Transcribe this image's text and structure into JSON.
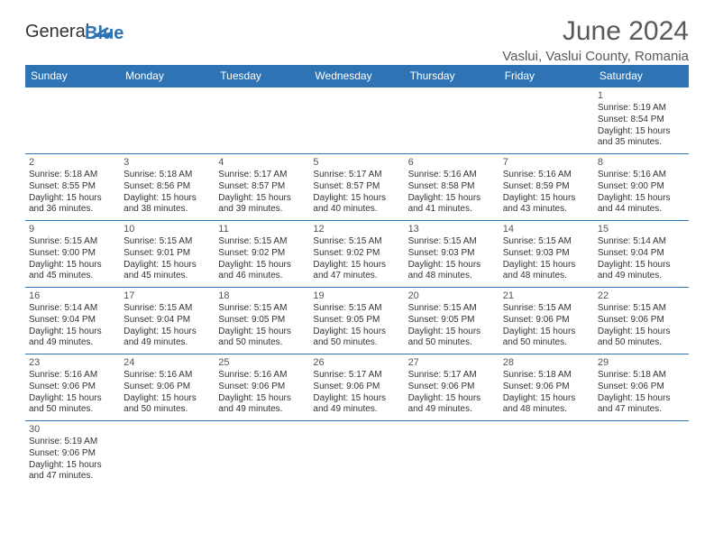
{
  "brand": {
    "part1": "General",
    "part2": "Blue",
    "accent": "#2e74b5",
    "text": "#333333"
  },
  "header": {
    "title": "June 2024",
    "location": "Vaslui, Vaslui County, Romania"
  },
  "calendar": {
    "weekday_labels": [
      "Sunday",
      "Monday",
      "Tuesday",
      "Wednesday",
      "Thursday",
      "Friday",
      "Saturday"
    ],
    "header_bg": "#2e74b5",
    "header_fg": "#ffffff",
    "border_color": "#2e74b5",
    "weeks": [
      [
        null,
        null,
        null,
        null,
        null,
        null,
        {
          "d": "1",
          "sr": "5:19 AM",
          "ss": "8:54 PM",
          "dl": "15 hours and 35 minutes."
        }
      ],
      [
        {
          "d": "2",
          "sr": "5:18 AM",
          "ss": "8:55 PM",
          "dl": "15 hours and 36 minutes."
        },
        {
          "d": "3",
          "sr": "5:18 AM",
          "ss": "8:56 PM",
          "dl": "15 hours and 38 minutes."
        },
        {
          "d": "4",
          "sr": "5:17 AM",
          "ss": "8:57 PM",
          "dl": "15 hours and 39 minutes."
        },
        {
          "d": "5",
          "sr": "5:17 AM",
          "ss": "8:57 PM",
          "dl": "15 hours and 40 minutes."
        },
        {
          "d": "6",
          "sr": "5:16 AM",
          "ss": "8:58 PM",
          "dl": "15 hours and 41 minutes."
        },
        {
          "d": "7",
          "sr": "5:16 AM",
          "ss": "8:59 PM",
          "dl": "15 hours and 43 minutes."
        },
        {
          "d": "8",
          "sr": "5:16 AM",
          "ss": "9:00 PM",
          "dl": "15 hours and 44 minutes."
        }
      ],
      [
        {
          "d": "9",
          "sr": "5:15 AM",
          "ss": "9:00 PM",
          "dl": "15 hours and 45 minutes."
        },
        {
          "d": "10",
          "sr": "5:15 AM",
          "ss": "9:01 PM",
          "dl": "15 hours and 45 minutes."
        },
        {
          "d": "11",
          "sr": "5:15 AM",
          "ss": "9:02 PM",
          "dl": "15 hours and 46 minutes."
        },
        {
          "d": "12",
          "sr": "5:15 AM",
          "ss": "9:02 PM",
          "dl": "15 hours and 47 minutes."
        },
        {
          "d": "13",
          "sr": "5:15 AM",
          "ss": "9:03 PM",
          "dl": "15 hours and 48 minutes."
        },
        {
          "d": "14",
          "sr": "5:15 AM",
          "ss": "9:03 PM",
          "dl": "15 hours and 48 minutes."
        },
        {
          "d": "15",
          "sr": "5:14 AM",
          "ss": "9:04 PM",
          "dl": "15 hours and 49 minutes."
        }
      ],
      [
        {
          "d": "16",
          "sr": "5:14 AM",
          "ss": "9:04 PM",
          "dl": "15 hours and 49 minutes."
        },
        {
          "d": "17",
          "sr": "5:15 AM",
          "ss": "9:04 PM",
          "dl": "15 hours and 49 minutes."
        },
        {
          "d": "18",
          "sr": "5:15 AM",
          "ss": "9:05 PM",
          "dl": "15 hours and 50 minutes."
        },
        {
          "d": "19",
          "sr": "5:15 AM",
          "ss": "9:05 PM",
          "dl": "15 hours and 50 minutes."
        },
        {
          "d": "20",
          "sr": "5:15 AM",
          "ss": "9:05 PM",
          "dl": "15 hours and 50 minutes."
        },
        {
          "d": "21",
          "sr": "5:15 AM",
          "ss": "9:06 PM",
          "dl": "15 hours and 50 minutes."
        },
        {
          "d": "22",
          "sr": "5:15 AM",
          "ss": "9:06 PM",
          "dl": "15 hours and 50 minutes."
        }
      ],
      [
        {
          "d": "23",
          "sr": "5:16 AM",
          "ss": "9:06 PM",
          "dl": "15 hours and 50 minutes."
        },
        {
          "d": "24",
          "sr": "5:16 AM",
          "ss": "9:06 PM",
          "dl": "15 hours and 50 minutes."
        },
        {
          "d": "25",
          "sr": "5:16 AM",
          "ss": "9:06 PM",
          "dl": "15 hours and 49 minutes."
        },
        {
          "d": "26",
          "sr": "5:17 AM",
          "ss": "9:06 PM",
          "dl": "15 hours and 49 minutes."
        },
        {
          "d": "27",
          "sr": "5:17 AM",
          "ss": "9:06 PM",
          "dl": "15 hours and 49 minutes."
        },
        {
          "d": "28",
          "sr": "5:18 AM",
          "ss": "9:06 PM",
          "dl": "15 hours and 48 minutes."
        },
        {
          "d": "29",
          "sr": "5:18 AM",
          "ss": "9:06 PM",
          "dl": "15 hours and 47 minutes."
        }
      ],
      [
        {
          "d": "30",
          "sr": "5:19 AM",
          "ss": "9:06 PM",
          "dl": "15 hours and 47 minutes."
        },
        null,
        null,
        null,
        null,
        null,
        null
      ]
    ],
    "labels": {
      "sunrise": "Sunrise:",
      "sunset": "Sunset:",
      "daylight": "Daylight:"
    }
  }
}
